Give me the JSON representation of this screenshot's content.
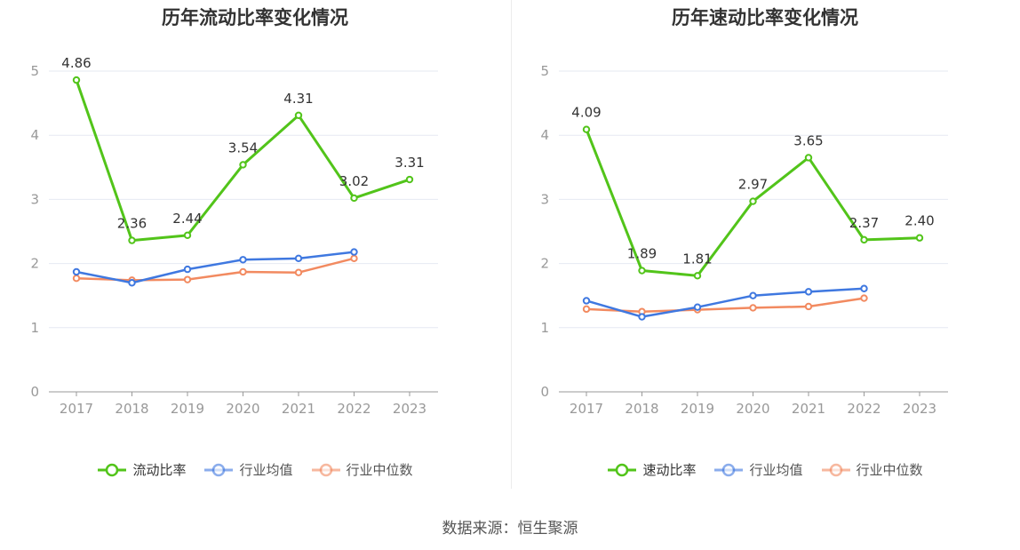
{
  "colors": {
    "main": "#52c41a",
    "avg": "#3f78e0",
    "median": "#f28a60",
    "axis": "#999999",
    "grid": "#e6e9f2",
    "label": "#333333"
  },
  "source": "数据来源：恒生聚源",
  "chart_data": [
    {
      "type": "line",
      "title": "历年流动比率变化情况",
      "x": [
        "2017",
        "2018",
        "2019",
        "2020",
        "2021",
        "2022",
        "2023"
      ],
      "ylim": [
        0,
        5
      ],
      "yticks": [
        "0",
        "1",
        "2",
        "3",
        "4",
        "5"
      ],
      "grid": true,
      "legend_position": "bottom",
      "series": [
        {
          "name": "流动比率",
          "values": [
            4.86,
            2.36,
            2.44,
            3.54,
            4.31,
            3.02,
            3.31
          ],
          "labels": [
            "4.86",
            "2.36",
            "2.44",
            "3.54",
            "4.31",
            "3.02",
            "3.31"
          ]
        },
        {
          "name": "行业均值",
          "values": [
            1.87,
            1.7,
            1.91,
            2.06,
            2.08,
            2.18,
            null
          ]
        },
        {
          "name": "行业中位数",
          "values": [
            1.77,
            1.74,
            1.75,
            1.87,
            1.86,
            2.08,
            null
          ]
        }
      ]
    },
    {
      "type": "line",
      "title": "历年速动比率变化情况",
      "x": [
        "2017",
        "2018",
        "2019",
        "2020",
        "2021",
        "2022",
        "2023"
      ],
      "ylim": [
        0,
        5
      ],
      "yticks": [
        "0",
        "1",
        "2",
        "3",
        "4",
        "5"
      ],
      "grid": true,
      "legend_position": "bottom",
      "series": [
        {
          "name": "速动比率",
          "values": [
            4.09,
            1.89,
            1.81,
            2.97,
            3.65,
            2.37,
            2.4
          ],
          "labels": [
            "4.09",
            "1.89",
            "1.81",
            "2.97",
            "3.65",
            "2.37",
            "2.40"
          ]
        },
        {
          "name": "行业均值",
          "values": [
            1.42,
            1.17,
            1.32,
            1.5,
            1.56,
            1.61,
            null
          ]
        },
        {
          "name": "行业中位数",
          "values": [
            1.29,
            1.25,
            1.28,
            1.31,
            1.33,
            1.46,
            null
          ]
        }
      ]
    }
  ]
}
